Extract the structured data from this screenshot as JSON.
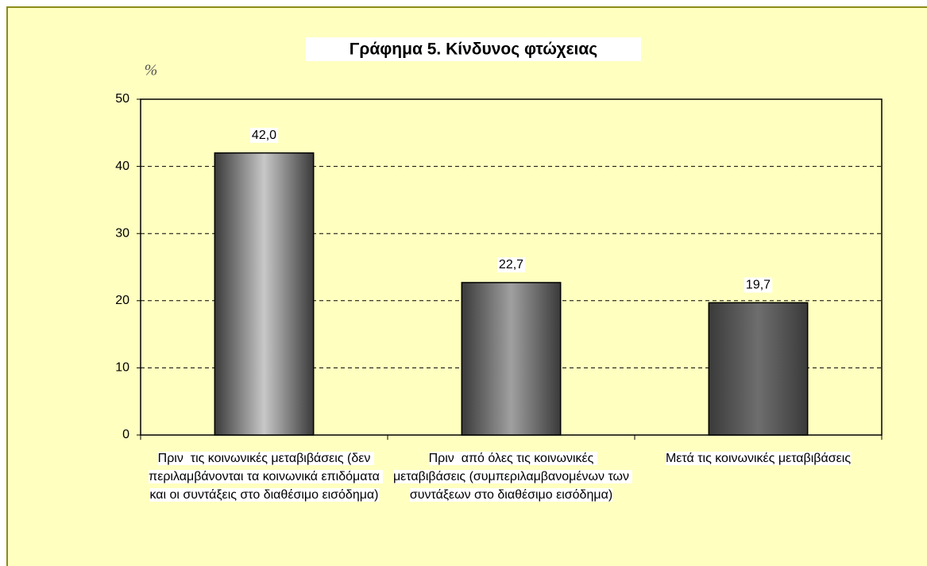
{
  "chart_data": {
    "type": "bar",
    "title": "Γράφημα 5. Κίνδυνος φτώχειας",
    "y_label": "%",
    "categories": [
      "Πριν  τις κοινωνικές μεταβιβάσεις (δεν περιλαμβάνονται τα κοινωνικά επιδόματα και οι συντάξεις στο διαθέσιμο εισόδημα)",
      "Πριν  από όλες τις κοινωνικές μεταβιβάσεις (συμπεριλαμβανομένων των συντάξεων στο διαθέσιμο εισόδημα)",
      "Μετά τις κοινωνικές μεταβιβάσεις"
    ],
    "values": [
      42.0,
      22.7,
      19.7
    ],
    "value_labels": [
      "42,0",
      "22,7",
      "19,7"
    ],
    "colors": [
      "#c8c8c8",
      "#a0a0a0",
      "#6e6e6e"
    ],
    "ylim": [
      0,
      50
    ],
    "yticks": [
      0,
      10,
      20,
      30,
      40,
      50
    ],
    "grid": true
  }
}
